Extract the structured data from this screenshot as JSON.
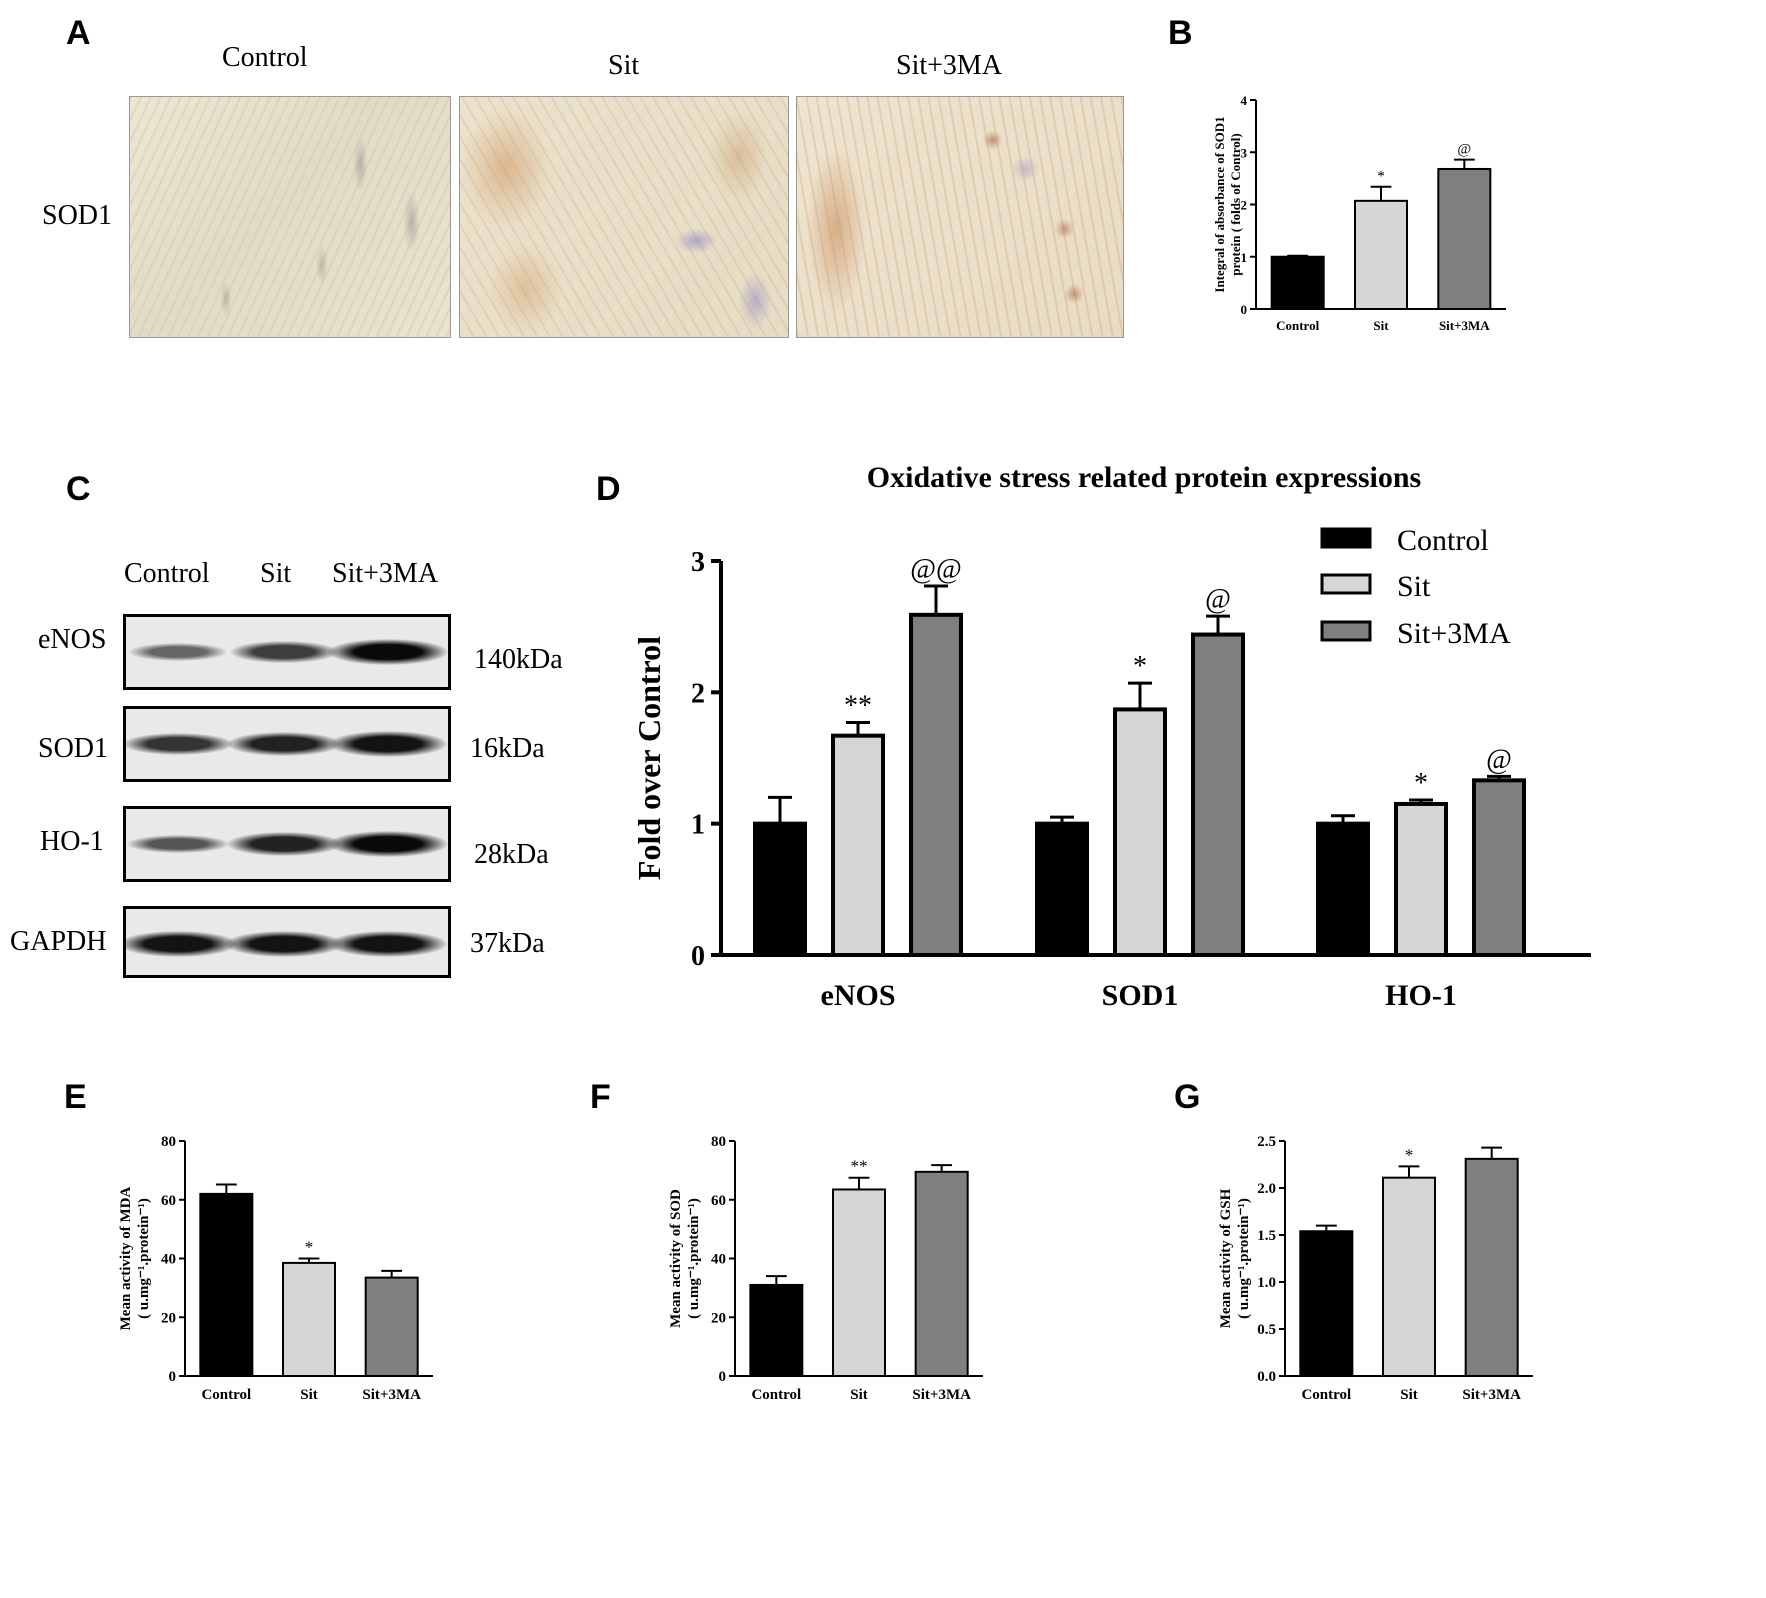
{
  "panels": {
    "A": "A",
    "B": "B",
    "C": "C",
    "D": "D",
    "E": "E",
    "F": "F",
    "G": "G"
  },
  "panelA": {
    "groups": [
      "Control",
      "Sit",
      "Sit+3MA"
    ],
    "row_label": "SOD1"
  },
  "panelC": {
    "lanes": [
      "Control",
      "Sit",
      "Sit+3MA"
    ],
    "blots": [
      {
        "protein": "eNOS",
        "size": "140kDa",
        "intensity": [
          0.45,
          0.7,
          1.0
        ]
      },
      {
        "protein": "SOD1",
        "size": "16kDa",
        "intensity": [
          0.75,
          0.85,
          0.95
        ]
      },
      {
        "protein": "HO-1",
        "size": "28kDa",
        "intensity": [
          0.55,
          0.85,
          1.0
        ]
      },
      {
        "protein": "GAPDH",
        "size": "37kDa",
        "intensity": [
          0.95,
          0.95,
          0.95
        ]
      }
    ]
  },
  "colors": {
    "control": "#000000",
    "sit": "#d6d6d6",
    "sit3ma": "#7f7f7f"
  },
  "chart_data": [
    {
      "panel": "B",
      "type": "bar",
      "title": "",
      "xlabel": "",
      "ylabel": "Integral of absorbance of SOD1 protein ( folds of Control)",
      "categories": [
        "Control",
        "Sit",
        "Sit+3MA"
      ],
      "values": [
        1.0,
        2.07,
        2.68
      ],
      "errors": [
        0.02,
        0.27,
        0.18
      ],
      "annotations": [
        "",
        "*",
        "@"
      ],
      "ylim": [
        0,
        4
      ],
      "yticks": [
        0,
        1,
        2,
        3,
        4
      ]
    },
    {
      "panel": "D",
      "type": "bar",
      "title": "Oxidative stress related protein expressions",
      "xlabel": "",
      "ylabel": "Fold over Control",
      "categories": [
        "eNOS",
        "SOD1",
        "HO-1"
      ],
      "series": [
        {
          "name": "Control",
          "values": [
            1.0,
            1.0,
            1.0
          ],
          "errors": [
            0.2,
            0.05,
            0.06
          ],
          "annotations": [
            "",
            "",
            ""
          ]
        },
        {
          "name": "Sit",
          "values": [
            1.67,
            1.87,
            1.15
          ],
          "errors": [
            0.1,
            0.2,
            0.03
          ],
          "annotations": [
            "**",
            "*",
            "*"
          ]
        },
        {
          "name": "Sit+3MA",
          "values": [
            2.59,
            2.44,
            1.33
          ],
          "errors": [
            0.22,
            0.14,
            0.03
          ],
          "annotations": [
            "@@",
            "@",
            "@"
          ]
        }
      ],
      "ylim": [
        0,
        3
      ],
      "yticks": [
        0,
        1,
        2,
        3
      ],
      "legend": "top-right"
    },
    {
      "panel": "E",
      "type": "bar",
      "title": "",
      "xlabel": "",
      "ylabel": "Mean activity of MDA",
      "ylabel2": "( u.mg⁻¹.protein⁻¹)",
      "categories": [
        "Control",
        "Sit",
        "Sit+3MA"
      ],
      "values": [
        62,
        38.5,
        33.5
      ],
      "errors": [
        3.2,
        1.5,
        2.3
      ],
      "annotations": [
        "",
        "*",
        ""
      ],
      "ylim": [
        0,
        80
      ],
      "yticks": [
        0,
        20,
        40,
        60,
        80
      ]
    },
    {
      "panel": "F",
      "type": "bar",
      "title": "",
      "xlabel": "",
      "ylabel": "Mean activity of SOD",
      "ylabel2": "( u.mg⁻¹.protein⁻¹)",
      "categories": [
        "Control",
        "Sit",
        "Sit+3MA"
      ],
      "values": [
        31,
        63.5,
        69.5
      ],
      "errors": [
        3,
        4,
        2.3
      ],
      "annotations": [
        "",
        "**",
        ""
      ],
      "ylim": [
        0,
        80
      ],
      "yticks": [
        0,
        20,
        40,
        60,
        80
      ]
    },
    {
      "panel": "G",
      "type": "bar",
      "title": "",
      "xlabel": "",
      "ylabel": "Mean activity of GSH",
      "ylabel2": "( u.mg⁻¹.protein⁻¹)",
      "categories": [
        "Control",
        "Sit",
        "Sit+3MA"
      ],
      "values": [
        1.54,
        2.11,
        2.31
      ],
      "errors": [
        0.06,
        0.12,
        0.12
      ],
      "annotations": [
        "",
        "*",
        ""
      ],
      "ylim": [
        0,
        2.5
      ],
      "yticks": [
        0,
        0.5,
        1.0,
        1.5,
        2.0,
        2.5
      ],
      "ytick_labels": [
        "0.0",
        "0.5",
        "1.0",
        "1.5",
        "2.0",
        "2.5"
      ]
    }
  ]
}
